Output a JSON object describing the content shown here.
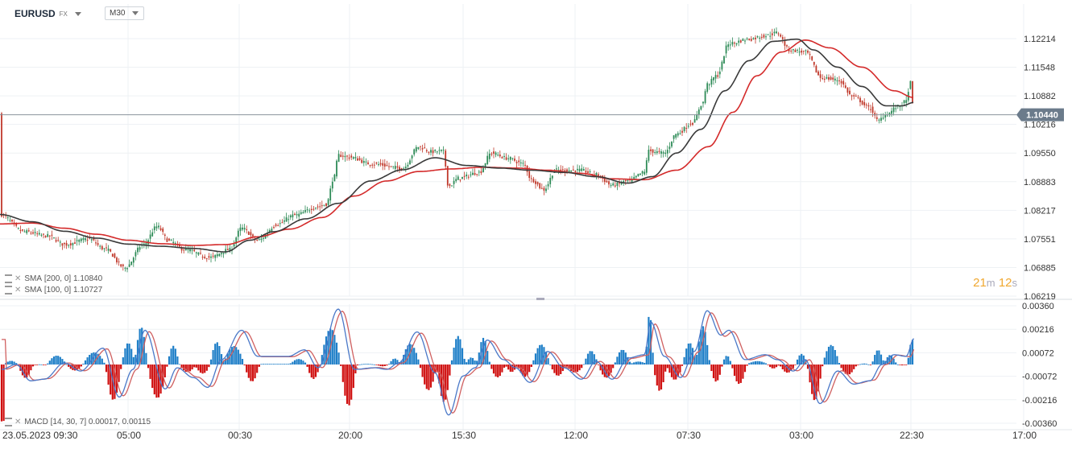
{
  "header": {
    "symbol": "EURUSD",
    "market": "FX",
    "timeframe": "M30"
  },
  "price_panel": {
    "indicators": [
      {
        "label": "SMA",
        "params": "[200, 0]",
        "value": "1.10840",
        "color": "#d42a2a"
      },
      {
        "label": "SMA",
        "params": "[100, 0]",
        "value": "1.10727",
        "color": "#3a3a3a"
      }
    ],
    "current_price": "1.10440",
    "countdown": {
      "min": "21",
      "min_unit": "m",
      "sec": "12",
      "sec_unit": "s"
    }
  },
  "macd_panel": {
    "label": "MACD",
    "params": "[14, 30, 7]",
    "value1": "0.00017",
    "value2": "0.00115"
  },
  "colors": {
    "bull": "#2e8b57",
    "bear": "#c0392b",
    "sma200": "#d42a2a",
    "sma100": "#3a3a3a",
    "macd_line": "#4a78c8",
    "signal_line": "#d06060",
    "hist_pos": "#1f7fc8",
    "hist_neg": "#d01010",
    "price_badge": "#6b7b8b"
  },
  "chart_data": [
    {
      "type": "candlestick",
      "x_tick_labels": [
        "23.05.2023 09:30",
        "05:00",
        "00:30",
        "20:00",
        "15:30",
        "12:00",
        "07:30",
        "03:00",
        "22:30",
        "17:00"
      ],
      "y_tick_labels": [
        "1.12214",
        "1.11548",
        "1.10882",
        "1.10216",
        "1.09550",
        "1.08883",
        "1.08217",
        "1.07551",
        "1.06885",
        "1.06219"
      ],
      "ylim": [
        1.0622,
        1.1255
      ],
      "current_price": 1.1044,
      "anchors": [
        [
          0,
          1.0812
        ],
        [
          30,
          1.0772
        ],
        [
          60,
          1.0762
        ],
        [
          80,
          1.0742
        ],
        [
          110,
          1.0755
        ],
        [
          130,
          1.0732
        ],
        [
          155,
          1.0688
        ],
        [
          178,
          1.0742
        ],
        [
          195,
          1.0784
        ],
        [
          210,
          1.075
        ],
        [
          230,
          1.073
        ],
        [
          260,
          1.0712
        ],
        [
          285,
          1.073
        ],
        [
          300,
          1.078
        ],
        [
          320,
          1.0752
        ],
        [
          345,
          1.079
        ],
        [
          365,
          1.081
        ],
        [
          395,
          1.083
        ],
        [
          405,
          1.0836
        ],
        [
          415,
          1.09
        ],
        [
          420,
          1.095
        ],
        [
          435,
          1.0945
        ],
        [
          460,
          1.093
        ],
        [
          500,
          1.092
        ],
        [
          520,
          1.097
        ],
        [
          535,
          1.0958
        ],
        [
          550,
          1.096
        ],
        [
          557,
          1.0878
        ],
        [
          570,
          1.0897
        ],
        [
          595,
          1.091
        ],
        [
          610,
          1.0955
        ],
        [
          630,
          1.0943
        ],
        [
          650,
          1.093
        ],
        [
          660,
          1.0893
        ],
        [
          675,
          1.087
        ],
        [
          690,
          1.0915
        ],
        [
          720,
          1.0915
        ],
        [
          740,
          1.0905
        ],
        [
          760,
          1.088
        ],
        [
          780,
          1.089
        ],
        [
          800,
          1.091
        ],
        [
          805,
          1.096
        ],
        [
          825,
          1.0955
        ],
        [
          840,
          1.1
        ],
        [
          860,
          1.1025
        ],
        [
          872,
          1.107
        ],
        [
          878,
          1.1115
        ],
        [
          890,
          1.1135
        ],
        [
          905,
          1.121
        ],
        [
          930,
          1.122
        ],
        [
          950,
          1.1228
        ],
        [
          965,
          1.1235
        ],
        [
          980,
          1.1195
        ],
        [
          1000,
          1.119
        ],
        [
          1020,
          1.113
        ],
        [
          1040,
          1.1125
        ],
        [
          1060,
          1.1085
        ],
        [
          1080,
          1.106
        ],
        [
          1090,
          1.103
        ],
        [
          1100,
          1.1045
        ],
        [
          1115,
          1.1063
        ],
        [
          1125,
          1.1075
        ],
        [
          1130,
          1.112
        ],
        [
          1135,
          1.1044
        ]
      ],
      "sma100_anchors": [
        [
          0,
          1.0812
        ],
        [
          40,
          1.0795
        ],
        [
          80,
          1.0773
        ],
        [
          120,
          1.0757
        ],
        [
          160,
          1.0743
        ],
        [
          200,
          1.0738
        ],
        [
          240,
          1.0733
        ],
        [
          280,
          1.0725
        ],
        [
          310,
          1.0752
        ],
        [
          340,
          1.0772
        ],
        [
          380,
          1.0802
        ],
        [
          420,
          1.0838
        ],
        [
          460,
          1.089
        ],
        [
          500,
          1.0916
        ],
        [
          540,
          1.0944
        ],
        [
          580,
          1.0926
        ],
        [
          620,
          1.092
        ],
        [
          660,
          1.0915
        ],
        [
          700,
          1.091
        ],
        [
          740,
          1.09
        ],
        [
          780,
          1.0885
        ],
        [
          810,
          1.09
        ],
        [
          840,
          1.0955
        ],
        [
          870,
          1.101
        ],
        [
          900,
          1.11
        ],
        [
          930,
          1.117
        ],
        [
          960,
          1.1215
        ],
        [
          990,
          1.122
        ],
        [
          1010,
          1.1195
        ],
        [
          1040,
          1.1155
        ],
        [
          1070,
          1.111
        ],
        [
          1100,
          1.1065
        ],
        [
          1120,
          1.1065
        ],
        [
          1135,
          1.1073
        ]
      ],
      "sma200_anchors": [
        [
          0,
          1.079
        ],
        [
          40,
          1.0792
        ],
        [
          80,
          1.078
        ],
        [
          120,
          1.0766
        ],
        [
          160,
          1.0752
        ],
        [
          200,
          1.0744
        ],
        [
          240,
          1.074
        ],
        [
          280,
          1.0742
        ],
        [
          320,
          1.076
        ],
        [
          360,
          1.0778
        ],
        [
          400,
          1.0805
        ],
        [
          440,
          1.0855
        ],
        [
          480,
          1.089
        ],
        [
          520,
          1.0912
        ],
        [
          560,
          1.0918
        ],
        [
          600,
          1.0922
        ],
        [
          640,
          1.092
        ],
        [
          680,
          1.0915
        ],
        [
          720,
          1.0908
        ],
        [
          760,
          1.0895
        ],
        [
          800,
          1.0893
        ],
        [
          840,
          1.0915
        ],
        [
          880,
          1.097
        ],
        [
          910,
          1.105
        ],
        [
          940,
          1.1135
        ],
        [
          970,
          1.119
        ],
        [
          1000,
          1.1218
        ],
        [
          1030,
          1.12
        ],
        [
          1070,
          1.1155
        ],
        [
          1110,
          1.11
        ],
        [
          1135,
          1.1084
        ]
      ]
    },
    {
      "type": "macd",
      "y_tick_labels": [
        "0.00360",
        "0.00216",
        "0.00072",
        "-0.00072",
        "-0.00216",
        "-0.00360"
      ],
      "ylim": [
        -0.0038,
        0.0037
      ],
      "peaks": [
        [
          2,
          -0.0003
        ],
        [
          20,
          0.0
        ],
        [
          38,
          -0.001
        ],
        [
          55,
          -0.0009
        ],
        [
          80,
          0.0001
        ],
        [
          100,
          -0.0004
        ],
        [
          128,
          0.001
        ],
        [
          148,
          -0.002
        ],
        [
          165,
          -0.0003
        ],
        [
          180,
          0.0021
        ],
        [
          205,
          -0.0015
        ],
        [
          220,
          -0.0002
        ],
        [
          240,
          -0.0008
        ],
        [
          258,
          -0.0014
        ],
        [
          275,
          0.0003
        ],
        [
          300,
          0.0021
        ],
        [
          320,
          0.0005
        ],
        [
          340,
          0.0005
        ],
        [
          358,
          0.0005
        ],
        [
          378,
          0.0009
        ],
        [
          395,
          -0.0002
        ],
        [
          420,
          0.0034
        ],
        [
          440,
          -0.0003
        ],
        [
          465,
          -0.0002
        ],
        [
          480,
          -0.0003
        ],
        [
          495,
          0.0001
        ],
        [
          518,
          0.002
        ],
        [
          540,
          -0.0005
        ],
        [
          557,
          -0.0031
        ],
        [
          575,
          -0.0007
        ],
        [
          590,
          -0.0002
        ],
        [
          605,
          0.0015
        ],
        [
          625,
          0.0003
        ],
        [
          640,
          -0.0002
        ],
        [
          658,
          -0.0011
        ],
        [
          680,
          0.0008
        ],
        [
          700,
          -0.0002
        ],
        [
          722,
          -0.0009
        ],
        [
          740,
          0.0002
        ],
        [
          760,
          -0.0009
        ],
        [
          780,
          0.0004
        ],
        [
          800,
          0.0006
        ],
        [
          808,
          0.0026
        ],
        [
          825,
          0.0005
        ],
        [
          845,
          -0.0008
        ],
        [
          862,
          0.0008
        ],
        [
          878,
          0.0033
        ],
        [
          895,
          0.0018
        ],
        [
          905,
          0.0021
        ],
        [
          925,
          0.0003
        ],
        [
          950,
          0.0006
        ],
        [
          965,
          0.0003
        ],
        [
          985,
          -0.0004
        ],
        [
          1000,
          0.0003
        ],
        [
          1018,
          -0.0024
        ],
        [
          1040,
          -0.0004
        ],
        [
          1060,
          -0.0012
        ],
        [
          1080,
          -0.001
        ],
        [
          1095,
          0.0
        ],
        [
          1110,
          0.0006
        ],
        [
          1125,
          0.0005
        ],
        [
          1135,
          0.0016
        ]
      ]
    }
  ]
}
